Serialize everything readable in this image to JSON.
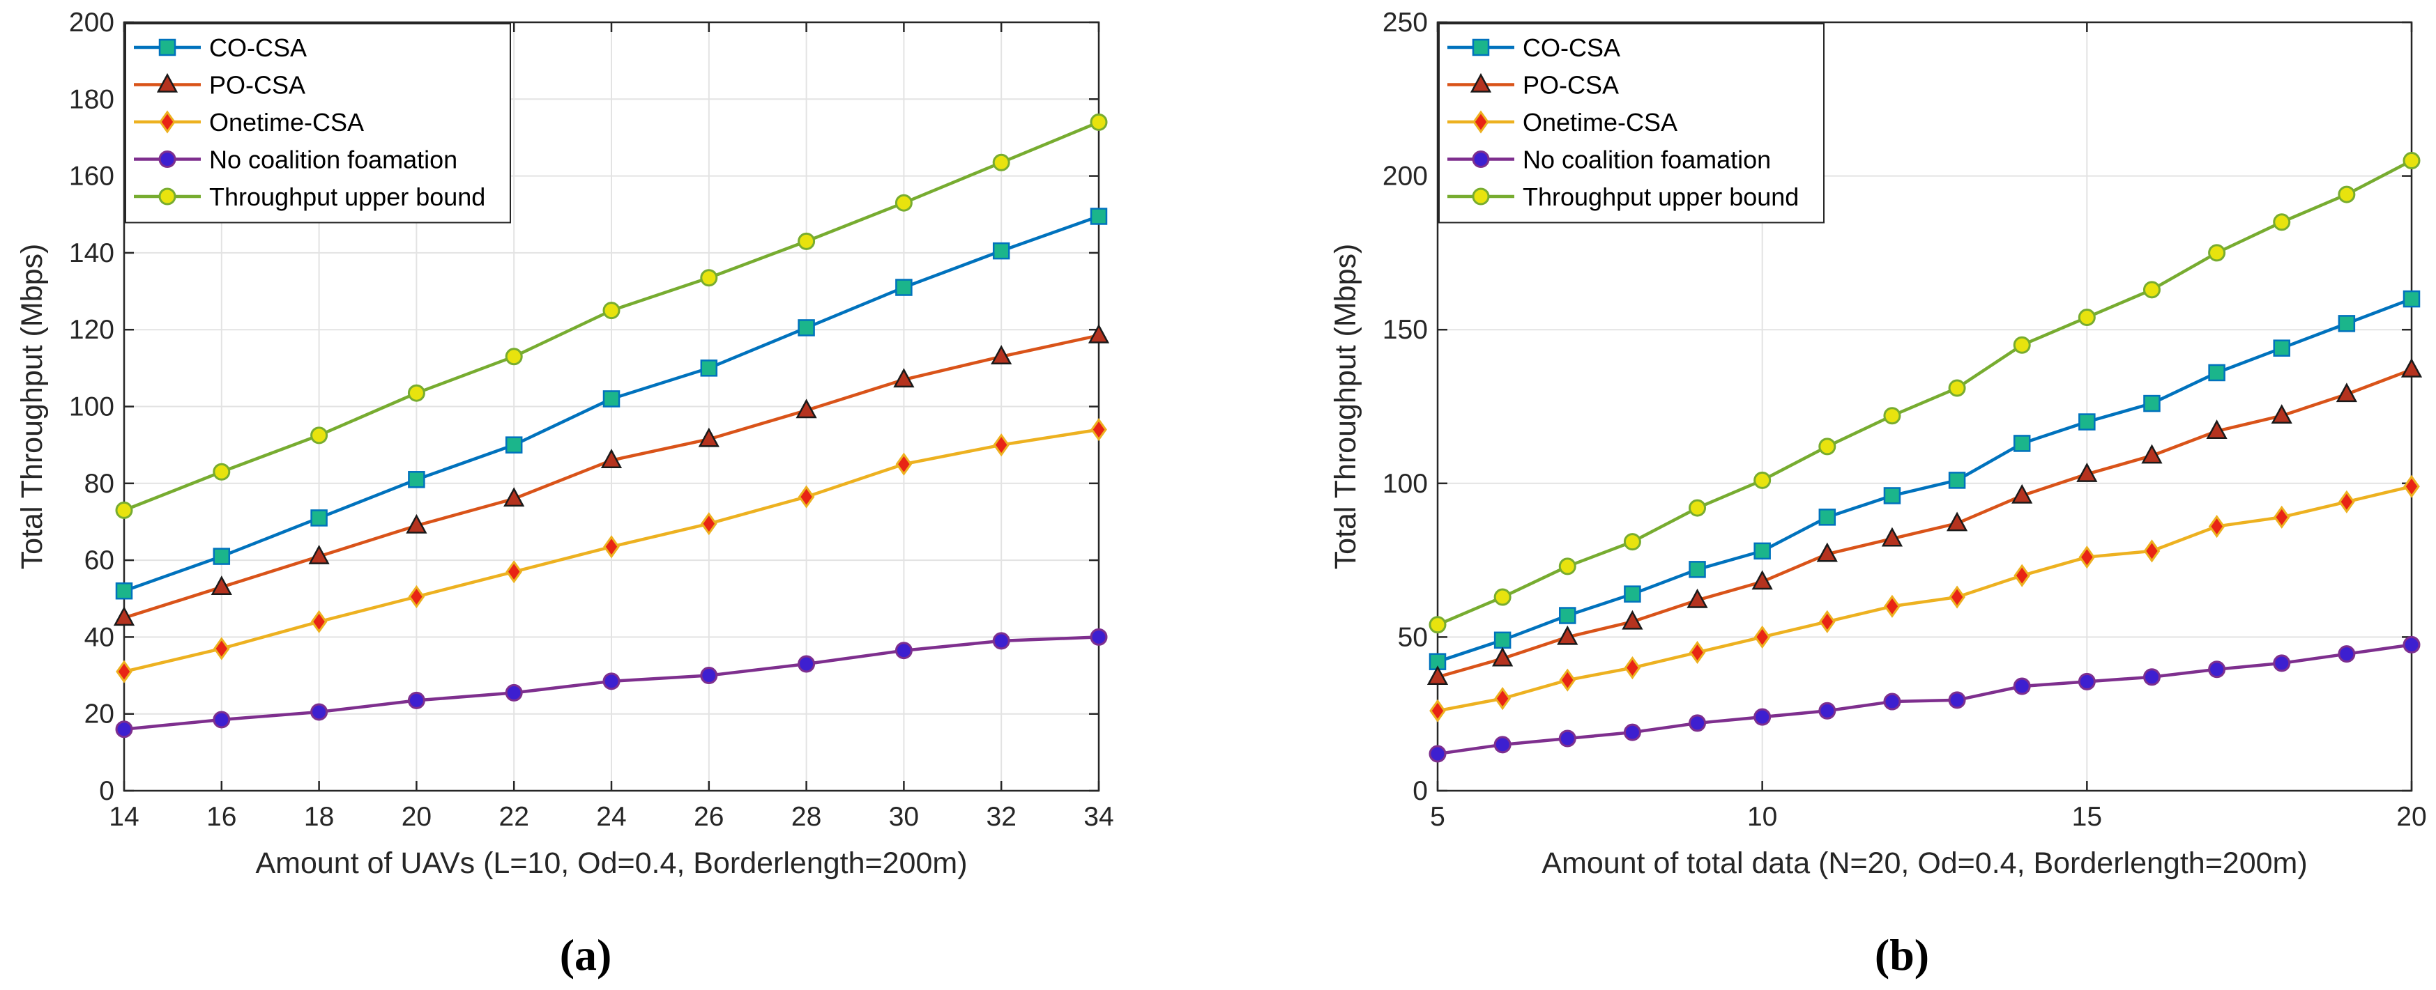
{
  "chart_data": [
    {
      "type": "line",
      "panel_label": "(a)",
      "xlabel": "Amount of UAVs (L=10, Od=0.4, Borderlength=200m)",
      "ylabel": "Total Throughput (Mbps)",
      "xlim": [
        14,
        34
      ],
      "ylim": [
        0,
        200
      ],
      "xticks": [
        "14",
        "16",
        "18",
        "20",
        "22",
        "24",
        "26",
        "28",
        "30",
        "32",
        "34"
      ],
      "yticks": [
        "0",
        "20",
        "40",
        "60",
        "80",
        "100",
        "120",
        "140",
        "160",
        "180",
        "200"
      ],
      "grid": true,
      "legend_position": "top-left",
      "x": [
        14,
        16,
        18,
        20,
        22,
        24,
        26,
        28,
        30,
        32,
        34
      ],
      "series": [
        {
          "name": "CO-CSA",
          "marker": "square",
          "color": "#0072BD",
          "face": "#1BB58B",
          "values": [
            52,
            61,
            71,
            81,
            90,
            102,
            110,
            120.5,
            131,
            140.5,
            149.5
          ]
        },
        {
          "name": "PO-CSA",
          "marker": "triangle",
          "color": "#D95319",
          "face": "#B5331F",
          "values": [
            45,
            53,
            61,
            69,
            76,
            86,
            91.5,
            99,
            107,
            113,
            118.5
          ]
        },
        {
          "name": "Onetime-CSA",
          "marker": "diamond",
          "color": "#EDB120",
          "face": "#E82415",
          "values": [
            31,
            37,
            44,
            50.5,
            57,
            63.5,
            69.5,
            76.5,
            85,
            90,
            94
          ]
        },
        {
          "name": "No coalition foamation",
          "marker": "circle",
          "color": "#7E2F8E",
          "face": "#3D1FD0",
          "values": [
            16,
            18.5,
            20.5,
            23.5,
            25.5,
            28.5,
            30,
            33,
            36.5,
            39,
            40
          ]
        },
        {
          "name": "Throughput upper bound",
          "marker": "circle",
          "color": "#77AC30",
          "face": "#E8E30E",
          "values": [
            73,
            83,
            92.5,
            103.5,
            113,
            125,
            133.5,
            143,
            153,
            163.5,
            174
          ]
        }
      ]
    },
    {
      "type": "line",
      "panel_label": "(b)",
      "xlabel": "Amount of total data (N=20, Od=0.4, Borderlength=200m)",
      "ylabel": "Total Throughput (Mbps)",
      "xlim": [
        5,
        20
      ],
      "ylim": [
        0,
        250
      ],
      "xticks": [
        "5",
        "10",
        "15",
        "20"
      ],
      "yticks": [
        "0",
        "50",
        "100",
        "150",
        "200",
        "250"
      ],
      "grid": true,
      "legend_position": "top-left",
      "x": [
        5,
        6,
        7,
        8,
        9,
        10,
        11,
        12,
        13,
        14,
        15,
        16,
        17,
        18,
        19,
        20
      ],
      "series": [
        {
          "name": "CO-CSA",
          "marker": "square",
          "color": "#0072BD",
          "face": "#1BB58B",
          "values": [
            42,
            49,
            57,
            64,
            72,
            78,
            89,
            96,
            101,
            113,
            120,
            126,
            136,
            144,
            152,
            160
          ]
        },
        {
          "name": "PO-CSA",
          "marker": "triangle",
          "color": "#D95319",
          "face": "#B5331F",
          "values": [
            37,
            43,
            50,
            55,
            62,
            68,
            77,
            82,
            87,
            96,
            103,
            109,
            117,
            122,
            129,
            137
          ]
        },
        {
          "name": "Onetime-CSA",
          "marker": "diamond",
          "color": "#EDB120",
          "face": "#E82415",
          "values": [
            26,
            30,
            36,
            40,
            45,
            50,
            55,
            60,
            63,
            70,
            76,
            78,
            86,
            89,
            94,
            99
          ]
        },
        {
          "name": "No coalition foamation",
          "marker": "circle",
          "color": "#7E2F8E",
          "face": "#3D1FD0",
          "values": [
            12,
            15,
            17,
            19,
            22,
            24,
            26,
            29,
            29.5,
            34,
            35.5,
            37,
            39.5,
            41.5,
            44.5,
            47.5
          ]
        },
        {
          "name": "Throughput upper bound",
          "marker": "circle",
          "color": "#77AC30",
          "face": "#E8E30E",
          "values": [
            54,
            63,
            73,
            81,
            92,
            101,
            112,
            122,
            131,
            145,
            154,
            163,
            175,
            185,
            194,
            205
          ]
        }
      ]
    }
  ]
}
